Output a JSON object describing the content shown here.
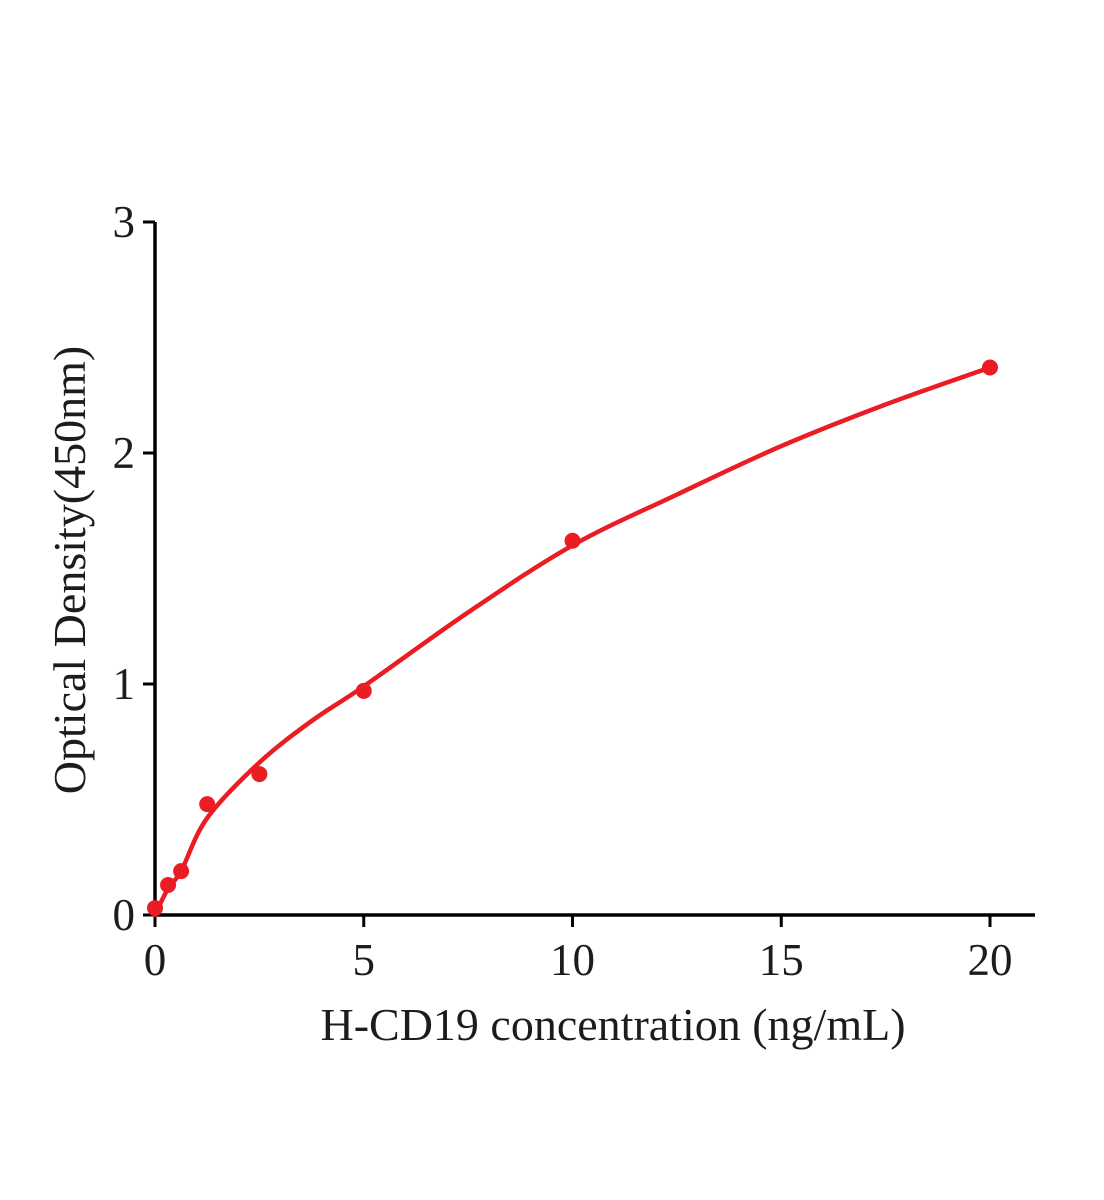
{
  "figure": {
    "background": "#ffffff",
    "axis_color": "#000000",
    "text_color": "#1c1c1c"
  },
  "chart_data": {
    "type": "scatter",
    "title": "",
    "xlabel": "H-CD19 concentration (ng/mL)",
    "ylabel": "Optical Density(450nm)",
    "xlim": [
      0,
      21.1
    ],
    "ylim": [
      0,
      3
    ],
    "x_ticks": [
      "0",
      "5",
      "10",
      "15",
      "20"
    ],
    "x_tick_values": [
      0,
      5,
      10,
      15,
      20
    ],
    "y_ticks": [
      "0",
      "1",
      "2",
      "3"
    ],
    "y_tick_values": [
      0,
      1,
      2,
      3
    ],
    "grid": false,
    "legend": "none",
    "accent_color": "#e91d23",
    "series": [
      {
        "name": "standard-points",
        "kind": "scatter",
        "color": "#e91d23",
        "marker_radius": 8,
        "x": [
          0,
          0.313,
          0.625,
          1.25,
          2.5,
          5,
          10,
          20
        ],
        "y": [
          0.03,
          0.13,
          0.19,
          0.48,
          0.61,
          0.97,
          1.62,
          2.37
        ]
      },
      {
        "name": "fitted-curve",
        "kind": "line",
        "color": "#e91d23",
        "stroke_width": 4.5,
        "x": [
          0,
          0.313,
          0.625,
          1.25,
          2.5,
          3.75,
          5,
          7.5,
          10,
          12.5,
          15,
          17.5,
          20
        ],
        "y": [
          0.0,
          0.115,
          0.19,
          0.42,
          0.66,
          0.84,
          0.99,
          1.31,
          1.6,
          1.82,
          2.03,
          2.21,
          2.37
        ]
      }
    ]
  }
}
